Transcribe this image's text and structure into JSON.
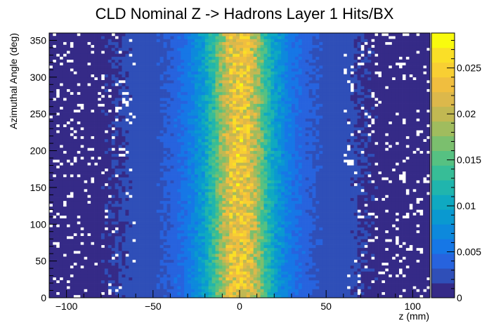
{
  "chart_data": {
    "type": "heatmap",
    "title": "CLD Nominal Z -> Hadrons Layer 1 Hits/BX",
    "xlabel": "z (mm)",
    "ylabel": "Azimuthal Angle (deg)",
    "xlim": [
      -110,
      110
    ],
    "ylim": [
      0,
      360
    ],
    "x_ticks": [
      -100,
      -50,
      0,
      50,
      100
    ],
    "y_ticks": [
      0,
      50,
      100,
      150,
      200,
      250,
      300,
      350
    ],
    "x_tick_labels": [
      "−100",
      "−50",
      "0",
      "50",
      "100"
    ],
    "y_tick_labels": [
      "0",
      "50",
      "100",
      "150",
      "200",
      "250",
      "300",
      "350"
    ],
    "nbins_x": 110,
    "nbins_y": 90,
    "colorbar": {
      "min": 0,
      "max": 0.0288,
      "ticks": [
        0,
        0.005,
        0.01,
        0.015,
        0.02,
        0.025
      ],
      "tick_labels": [
        "0",
        "0.005",
        "0.01",
        "0.015",
        "0.02",
        "0.025"
      ],
      "colors": [
        "#352a87",
        "#2f4fb8",
        "#2763de",
        "#1677e6",
        "#0d89dc",
        "#0a99d0",
        "#0fa9c1",
        "#20b5ad",
        "#37bd97",
        "#56c182",
        "#7bbf6e",
        "#a0bc5e",
        "#c1b852",
        "#dcb84b",
        "#f0be3f",
        "#f8cf33",
        "#fadf27",
        "#f9fb0e"
      ]
    },
    "profile": {
      "description_values": "mean hits/BX per bin vs z (data units)",
      "z": [
        -110,
        -90,
        -70,
        -50,
        -40,
        -30,
        -20,
        -15,
        -10,
        -5,
        0,
        5,
        10,
        15,
        20,
        30,
        40,
        50,
        70,
        90,
        110
      ],
      "value": [
        0.0008,
        0.0011,
        0.0016,
        0.0025,
        0.0035,
        0.0055,
        0.0095,
        0.0135,
        0.0185,
        0.0225,
        0.0235,
        0.0225,
        0.0185,
        0.0135,
        0.0095,
        0.0055,
        0.0035,
        0.0025,
        0.0016,
        0.0011,
        0.0008
      ]
    },
    "grid": false,
    "legend": "colorbar-right"
  }
}
